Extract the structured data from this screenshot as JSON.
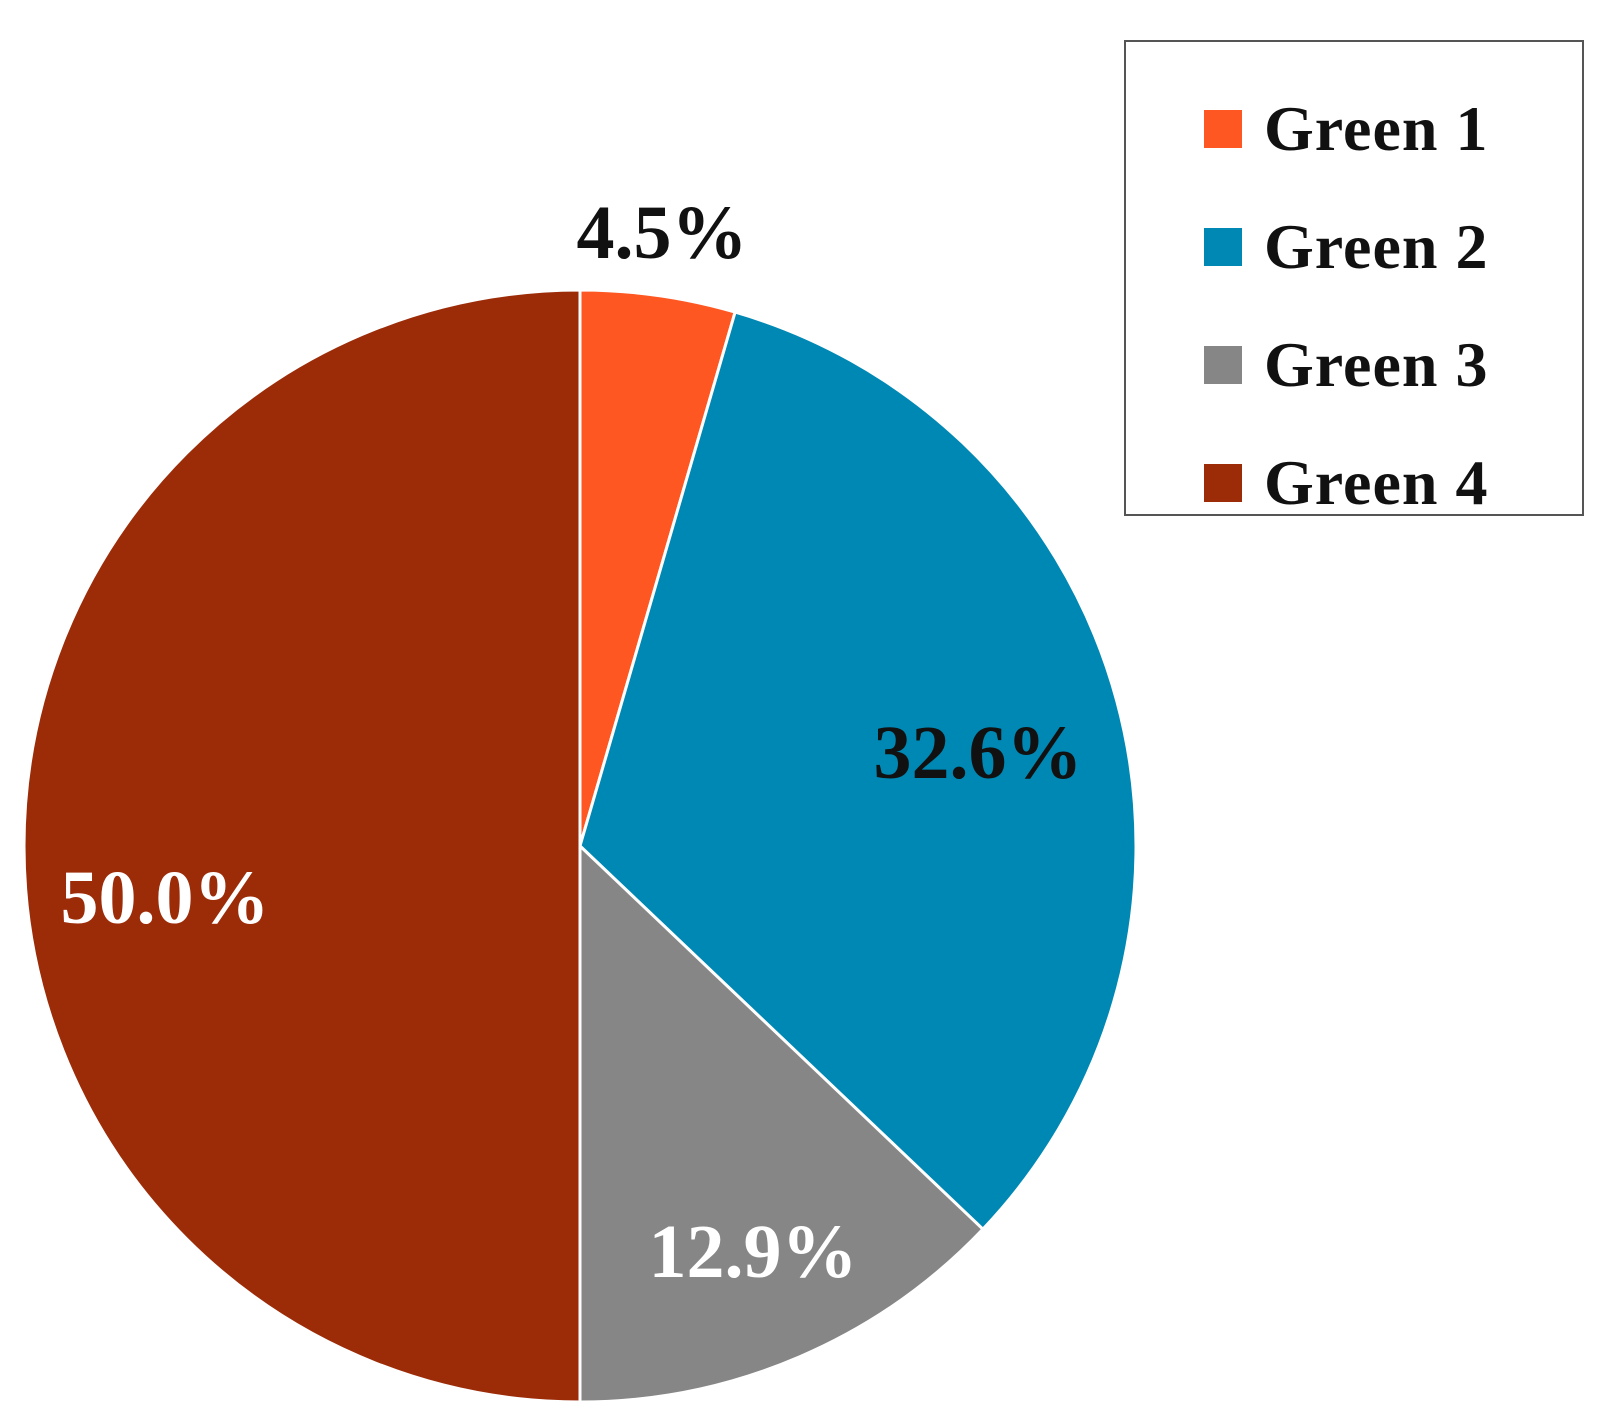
{
  "chart_data": {
    "type": "pie",
    "categories": [
      "Green 1",
      "Green 2",
      "Green 3",
      "Green 4"
    ],
    "values": [
      4.5,
      32.6,
      12.9,
      50.0
    ],
    "labels": [
      "4.5%",
      "32.6%",
      "12.9%",
      "50.0%"
    ],
    "colors": [
      "#ff5722",
      "#0088b4",
      "#868686",
      "#9c2b08"
    ],
    "label_colors": [
      "#111111",
      "#111111",
      "#ffffff",
      "#ffffff"
    ],
    "start_angle": "12 o'clock",
    "direction": "clockwise",
    "legend": {
      "placement": "top-right",
      "entries": [
        "Green 1",
        "Green 2",
        "Green 3",
        "Green 4"
      ]
    },
    "title": ""
  }
}
